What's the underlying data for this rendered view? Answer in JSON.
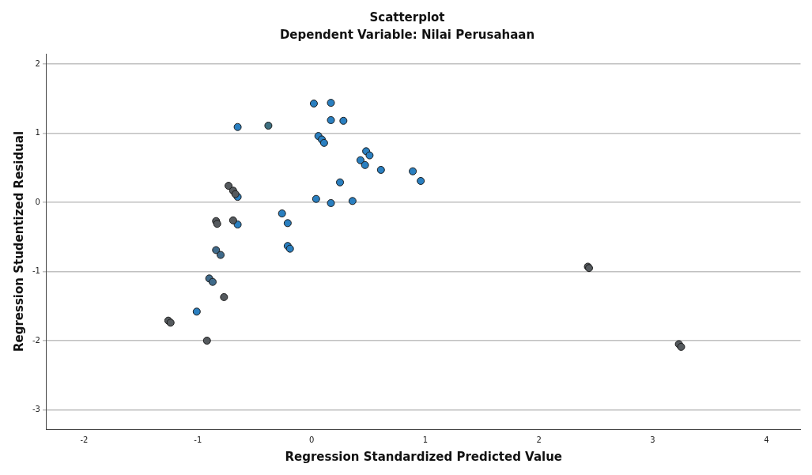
{
  "chart_data": {
    "type": "scatter",
    "title": "Scatterplot",
    "subtitle": "Dependent Variable: Nilai Perusahaan",
    "xlabel": "Regression Standardized Predicted Value",
    "ylabel": "Regression Studentized Residual",
    "xlim": [
      -2.33,
      4.3
    ],
    "xticks": [
      -2,
      -1,
      0,
      1,
      2,
      3,
      4
    ],
    "ylim": [
      -3.28,
      2.15
    ],
    "yticks": [
      -3,
      -2,
      -1,
      0,
      1,
      2
    ],
    "grid": "y",
    "marker": "circle",
    "x": [
      0.02,
      0.17,
      0.17,
      0.28,
      -0.65,
      -0.38,
      0.06,
      0.09,
      0.11,
      0.48,
      0.51,
      0.43,
      0.47,
      0.61,
      0.89,
      0.96,
      0.25,
      0.04,
      0.17,
      0.36,
      -0.26,
      -0.21,
      -0.21,
      -0.19,
      -0.65,
      -0.65,
      -1.01,
      -0.73,
      -0.69,
      -0.67,
      -0.84,
      -0.83,
      -0.69,
      -0.84,
      -0.8,
      -0.9,
      -0.87,
      -0.77,
      -1.26,
      -1.24,
      -0.92,
      2.43,
      2.44,
      3.23,
      3.25
    ],
    "values": [
      1.43,
      1.44,
      1.19,
      1.18,
      1.09,
      1.11,
      0.96,
      0.91,
      0.86,
      0.74,
      0.68,
      0.61,
      0.54,
      0.47,
      0.45,
      0.31,
      0.29,
      0.05,
      -0.01,
      0.02,
      -0.16,
      -0.3,
      -0.63,
      -0.67,
      0.08,
      -0.32,
      -1.58,
      0.24,
      0.17,
      0.12,
      -0.27,
      -0.31,
      -0.26,
      -0.69,
      -0.76,
      -1.1,
      -1.15,
      -1.37,
      -1.71,
      -1.74,
      -2,
      -0.93,
      -0.95,
      -2.05,
      -2.09
    ],
    "colors": [
      "#2a7fc0",
      "#2a7fc0",
      "#2a7fc0",
      "#2a7fc0",
      "#2a7fc0",
      "#3d6f80",
      "#2a7fc0",
      "#2a7fc0",
      "#2a7fc0",
      "#2a7fc0",
      "#2a7fc0",
      "#2a7fc0",
      "#2a7fc0",
      "#2a7fc0",
      "#2a7fc0",
      "#2a7fc0",
      "#2a7fc0",
      "#2a7fc0",
      "#2a7fc0",
      "#2a7fc0",
      "#2a7fc0",
      "#2a7fc0",
      "#2a7fc0",
      "#2a7fc0",
      "#2a7fc0",
      "#2a7fc0",
      "#2a7fc0",
      "#555a5e",
      "#555a5e",
      "#555a5e",
      "#555a5e",
      "#555a5e",
      "#555a5e",
      "#3f6a8a",
      "#3f6a8a",
      "#3f6a8a",
      "#3f6a8a",
      "#555a5e",
      "#555a5e",
      "#555a5e",
      "#555a5e",
      "#555a5e",
      "#555a5e",
      "#555a5e",
      "#555a5e"
    ]
  }
}
